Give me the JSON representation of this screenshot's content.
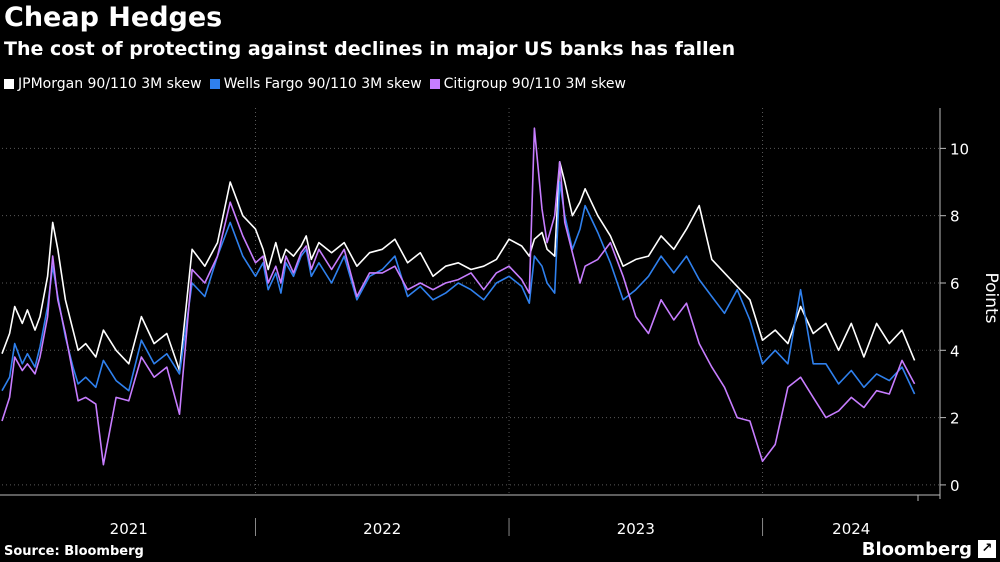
{
  "title": "Cheap Hedges",
  "subtitle": "The cost of protecting against declines in major US banks has fallen",
  "source": "Source: Bloomberg",
  "brand": "Bloomberg",
  "brand_badge": "↗",
  "chart_data": {
    "type": "line",
    "title": "Cheap Hedges",
    "subtitle": "The cost of protecting against declines in major US banks has fallen",
    "xlabel": "",
    "ylabel": "Points",
    "ylim": [
      -0.3,
      11.2
    ],
    "yticks": [
      0,
      2,
      4,
      6,
      8,
      10
    ],
    "xlim": [
      2021.0,
      2024.7
    ],
    "year_labels": [
      {
        "label": "2021",
        "x": 2021.5
      },
      {
        "label": "2022",
        "x": 2022.5
      },
      {
        "label": "2023",
        "x": 2023.5
      },
      {
        "label": "2024",
        "x": 2024.35
      }
    ],
    "year_dividers": [
      2022.0,
      2023.0,
      2024.0
    ],
    "grid": true,
    "legend_position": "top-left",
    "colors": {
      "jpm": "#ffffff",
      "wfc": "#2f80ed",
      "citi": "#c77dff"
    },
    "series": [
      {
        "name": "JPMorgan 90/110 3M skew",
        "key": "jpm",
        "color": "#ffffff",
        "x": [
          2021.0,
          2021.03,
          2021.05,
          2021.08,
          2021.1,
          2021.13,
          2021.15,
          2021.18,
          2021.2,
          2021.22,
          2021.25,
          2021.28,
          2021.3,
          2021.33,
          2021.37,
          2021.4,
          2021.45,
          2021.5,
          2021.55,
          2021.6,
          2021.65,
          2021.7,
          2021.75,
          2021.8,
          2021.85,
          2021.9,
          2021.95,
          2022.0,
          2022.03,
          2022.05,
          2022.08,
          2022.1,
          2022.12,
          2022.15,
          2022.18,
          2022.2,
          2022.22,
          2022.25,
          2022.3,
          2022.35,
          2022.4,
          2022.45,
          2022.5,
          2022.55,
          2022.6,
          2022.65,
          2022.7,
          2022.75,
          2022.8,
          2022.85,
          2022.9,
          2022.95,
          2023.0,
          2023.05,
          2023.08,
          2023.1,
          2023.13,
          2023.15,
          2023.18,
          2023.2,
          2023.22,
          2023.25,
          2023.28,
          2023.3,
          2023.35,
          2023.4,
          2023.45,
          2023.5,
          2023.55,
          2023.6,
          2023.65,
          2023.7,
          2023.75,
          2023.8,
          2023.85,
          2023.9,
          2023.95,
          2024.0,
          2024.05,
          2024.1,
          2024.15,
          2024.2,
          2024.25,
          2024.3,
          2024.35,
          2024.4,
          2024.45,
          2024.5,
          2024.55,
          2024.6
        ],
        "y": [
          3.9,
          4.5,
          5.3,
          4.8,
          5.2,
          4.6,
          5.0,
          6.2,
          7.8,
          7.0,
          5.5,
          4.6,
          4.0,
          4.2,
          3.8,
          4.6,
          4.0,
          3.6,
          5.0,
          4.2,
          4.5,
          3.4,
          7.0,
          6.5,
          7.2,
          9.0,
          8.0,
          7.6,
          7.0,
          6.4,
          7.2,
          6.6,
          7.0,
          6.8,
          7.1,
          7.4,
          6.7,
          7.2,
          6.9,
          7.2,
          6.5,
          6.9,
          7.0,
          7.3,
          6.6,
          6.9,
          6.2,
          6.5,
          6.6,
          6.4,
          6.5,
          6.7,
          7.3,
          7.1,
          6.8,
          7.3,
          7.5,
          7.0,
          6.8,
          9.6,
          9.0,
          8.0,
          8.4,
          8.8,
          8.0,
          7.4,
          6.5,
          6.7,
          6.8,
          7.4,
          7.0,
          7.6,
          8.3,
          6.7,
          6.3,
          5.9,
          5.5,
          4.3,
          4.6,
          4.2,
          5.3,
          4.5,
          4.8,
          4.0,
          4.8,
          3.8,
          4.8,
          4.2,
          4.6,
          3.7
        ]
      },
      {
        "name": "Wells Fargo 90/110 3M skew",
        "key": "wfc",
        "color": "#2f80ed",
        "x": [
          2021.0,
          2021.03,
          2021.05,
          2021.08,
          2021.1,
          2021.13,
          2021.15,
          2021.18,
          2021.2,
          2021.22,
          2021.25,
          2021.28,
          2021.3,
          2021.33,
          2021.37,
          2021.4,
          2021.45,
          2021.5,
          2021.55,
          2021.6,
          2021.65,
          2021.7,
          2021.75,
          2021.8,
          2021.85,
          2021.9,
          2021.95,
          2022.0,
          2022.03,
          2022.05,
          2022.08,
          2022.1,
          2022.12,
          2022.15,
          2022.18,
          2022.2,
          2022.22,
          2022.25,
          2022.3,
          2022.35,
          2022.4,
          2022.45,
          2022.5,
          2022.55,
          2022.6,
          2022.65,
          2022.7,
          2022.75,
          2022.8,
          2022.85,
          2022.9,
          2022.95,
          2023.0,
          2023.05,
          2023.08,
          2023.1,
          2023.13,
          2023.15,
          2023.18,
          2023.2,
          2023.22,
          2023.25,
          2023.28,
          2023.3,
          2023.35,
          2023.4,
          2023.45,
          2023.5,
          2023.55,
          2023.6,
          2023.65,
          2023.7,
          2023.75,
          2023.8,
          2023.85,
          2023.9,
          2023.95,
          2024.0,
          2024.05,
          2024.1,
          2024.15,
          2024.2,
          2024.25,
          2024.3,
          2024.35,
          2024.4,
          2024.45,
          2024.5,
          2024.55,
          2024.6
        ],
        "y": [
          2.8,
          3.2,
          4.2,
          3.6,
          3.9,
          3.5,
          4.1,
          5.3,
          6.5,
          5.6,
          4.4,
          3.5,
          3.0,
          3.2,
          2.9,
          3.7,
          3.1,
          2.8,
          4.3,
          3.6,
          3.9,
          3.3,
          6.0,
          5.6,
          6.8,
          7.8,
          6.8,
          6.2,
          6.6,
          5.8,
          6.3,
          5.7,
          6.6,
          6.2,
          6.8,
          7.0,
          6.2,
          6.6,
          6.0,
          6.8,
          5.5,
          6.2,
          6.4,
          6.8,
          5.6,
          5.9,
          5.5,
          5.7,
          6.0,
          5.8,
          5.5,
          6.0,
          6.2,
          5.9,
          5.4,
          6.8,
          6.5,
          6.0,
          5.7,
          9.0,
          8.0,
          7.0,
          7.6,
          8.3,
          7.5,
          6.6,
          5.5,
          5.8,
          6.2,
          6.8,
          6.3,
          6.8,
          6.1,
          5.6,
          5.1,
          5.8,
          4.9,
          3.6,
          4.0,
          3.6,
          5.8,
          3.6,
          3.6,
          3.0,
          3.4,
          2.9,
          3.3,
          3.1,
          3.5,
          2.7
        ]
      },
      {
        "name": "Citigroup 90/110 3M skew",
        "key": "citi",
        "color": "#c77dff",
        "x": [
          2021.0,
          2021.03,
          2021.05,
          2021.08,
          2021.1,
          2021.13,
          2021.15,
          2021.18,
          2021.2,
          2021.22,
          2021.25,
          2021.28,
          2021.3,
          2021.33,
          2021.37,
          2021.4,
          2021.45,
          2021.5,
          2021.55,
          2021.6,
          2021.65,
          2021.7,
          2021.75,
          2021.8,
          2021.85,
          2021.9,
          2021.95,
          2022.0,
          2022.03,
          2022.05,
          2022.08,
          2022.1,
          2022.12,
          2022.15,
          2022.18,
          2022.2,
          2022.22,
          2022.25,
          2022.3,
          2022.35,
          2022.4,
          2022.45,
          2022.5,
          2022.55,
          2022.6,
          2022.65,
          2022.7,
          2022.75,
          2022.8,
          2022.85,
          2022.9,
          2022.95,
          2023.0,
          2023.05,
          2023.08,
          2023.1,
          2023.13,
          2023.15,
          2023.18,
          2023.2,
          2023.22,
          2023.25,
          2023.28,
          2023.3,
          2023.35,
          2023.4,
          2023.45,
          2023.5,
          2023.55,
          2023.6,
          2023.65,
          2023.7,
          2023.75,
          2023.8,
          2023.85,
          2023.9,
          2023.95,
          2024.0,
          2024.05,
          2024.1,
          2024.15,
          2024.2,
          2024.25,
          2024.3,
          2024.35,
          2024.4,
          2024.45,
          2024.5,
          2024.55,
          2024.6
        ],
        "y": [
          1.9,
          2.6,
          3.8,
          3.4,
          3.6,
          3.3,
          3.8,
          5.0,
          6.8,
          5.5,
          4.5,
          3.3,
          2.5,
          2.6,
          2.4,
          0.6,
          2.6,
          2.5,
          3.8,
          3.2,
          3.5,
          2.1,
          6.4,
          6.0,
          6.8,
          8.4,
          7.4,
          6.6,
          6.8,
          6.0,
          6.5,
          6.0,
          6.8,
          6.3,
          6.9,
          7.1,
          6.4,
          7.0,
          6.4,
          7.0,
          5.6,
          6.3,
          6.3,
          6.5,
          5.8,
          6.0,
          5.8,
          6.0,
          6.1,
          6.3,
          5.8,
          6.3,
          6.5,
          6.1,
          5.7,
          10.6,
          8.2,
          7.2,
          8.0,
          9.6,
          7.8,
          6.9,
          6.0,
          6.5,
          6.7,
          7.2,
          6.2,
          5.0,
          4.5,
          5.5,
          4.9,
          5.4,
          4.2,
          3.5,
          2.9,
          2.0,
          1.9,
          0.7,
          1.2,
          2.9,
          3.2,
          2.6,
          2.0,
          2.2,
          2.6,
          2.3,
          2.8,
          2.7,
          3.7,
          3.0
        ]
      }
    ]
  }
}
